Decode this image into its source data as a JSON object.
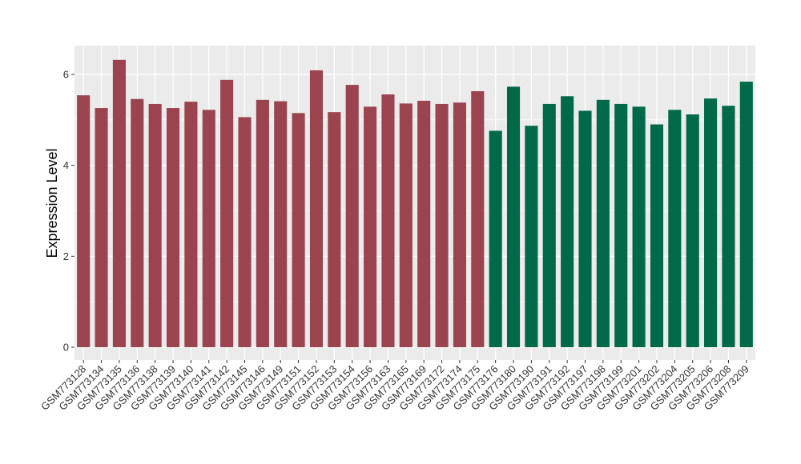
{
  "chart_data": {
    "type": "bar",
    "title": "",
    "xlabel": "",
    "ylabel": "Expression Level",
    "ylim": [
      0,
      6.62
    ],
    "yticks": [
      0,
      2,
      4,
      6
    ],
    "grid": true,
    "categories": [
      "GSM773128",
      "GSM773134",
      "GSM773135",
      "GSM773136",
      "GSM773138",
      "GSM773139",
      "GSM773140",
      "GSM773141",
      "GSM773142",
      "GSM773145",
      "GSM773146",
      "GSM773149",
      "GSM773151",
      "GSM773152",
      "GSM773153",
      "GSM773154",
      "GSM773156",
      "GSM773163",
      "GSM773165",
      "GSM773169",
      "GSM773172",
      "GSM773174",
      "GSM773175",
      "GSM773176",
      "GSM773180",
      "GSM773190",
      "GSM773191",
      "GSM773192",
      "GSM773197",
      "GSM773198",
      "GSM773199",
      "GSM773201",
      "GSM773202",
      "GSM773204",
      "GSM773205",
      "GSM773206",
      "GSM773208",
      "GSM773209"
    ],
    "values": [
      5.54,
      5.26,
      6.32,
      5.46,
      5.35,
      5.26,
      5.4,
      5.22,
      5.88,
      5.06,
      5.44,
      5.41,
      5.15,
      6.09,
      5.17,
      5.77,
      5.29,
      5.56,
      5.36,
      5.42,
      5.35,
      5.38,
      5.63,
      4.76,
      5.73,
      4.87,
      5.35,
      5.52,
      5.2,
      5.44,
      5.35,
      5.29,
      4.9,
      5.22,
      5.12,
      5.47,
      5.31,
      5.84
    ],
    "group_colors": [
      "#9b4450",
      "#00694a"
    ],
    "groups": [
      0,
      0,
      0,
      0,
      0,
      0,
      0,
      0,
      0,
      0,
      0,
      0,
      0,
      0,
      0,
      0,
      0,
      0,
      0,
      0,
      0,
      0,
      0,
      1,
      1,
      1,
      1,
      1,
      1,
      1,
      1,
      1,
      1,
      1,
      1,
      1,
      1,
      1
    ],
    "panel_background": "#ebebeb",
    "grid_color": "#ffffff"
  }
}
